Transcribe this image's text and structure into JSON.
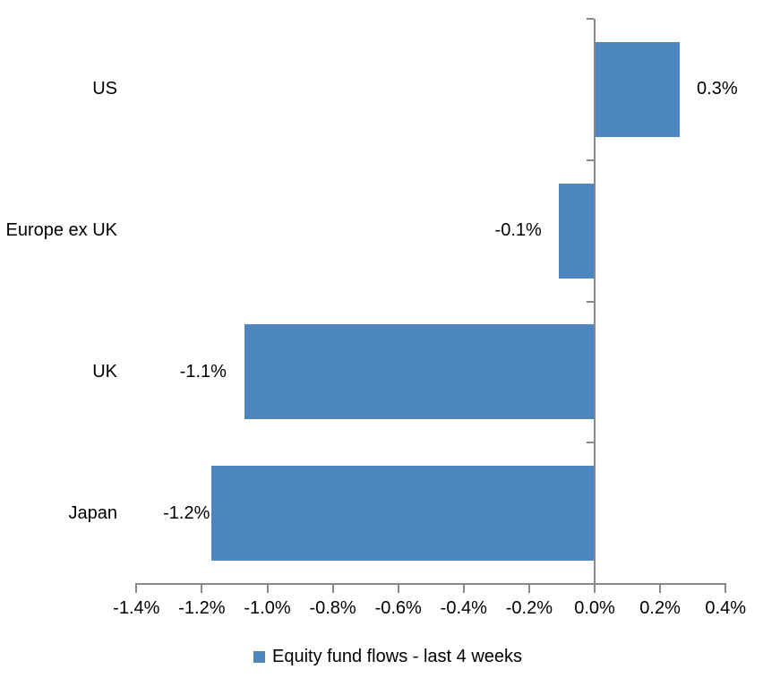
{
  "chart_data": {
    "type": "bar",
    "orientation": "horizontal",
    "title": "",
    "xlabel": "",
    "ylabel": "",
    "categories": [
      "US",
      "Europe ex UK",
      "UK",
      "Japan"
    ],
    "series": [
      {
        "name": "Equity fund flows - last 4 weeks",
        "values": [
          0.3,
          -0.1,
          -1.1,
          -1.2
        ],
        "bar_values_precise": [
          0.26,
          -0.11,
          -1.07,
          -1.17
        ],
        "data_labels": [
          "0.3%",
          "-0.1%",
          "-1.1%",
          "-1.2%"
        ]
      }
    ],
    "xlim": [
      -1.4,
      0.4
    ],
    "x_tick_values": [
      -1.4,
      -1.2,
      -1.0,
      -0.8,
      -0.6,
      -0.4,
      -0.2,
      0.0,
      0.2,
      0.4
    ],
    "x_tick_labels": [
      "-1.4%",
      "-1.2%",
      "-1.0%",
      "-0.8%",
      "-0.6%",
      "-0.4%",
      "-0.2%",
      "0.0%",
      "0.2%",
      "0.4%"
    ],
    "grid": false,
    "legend_position": "bottom-center",
    "colors": {
      "bar": "#4E86C0",
      "axis": "#898989",
      "text": "#000000",
      "background": "#FFFFFF"
    }
  },
  "legend": {
    "label": "Equity fund flows - last 4 weeks"
  }
}
